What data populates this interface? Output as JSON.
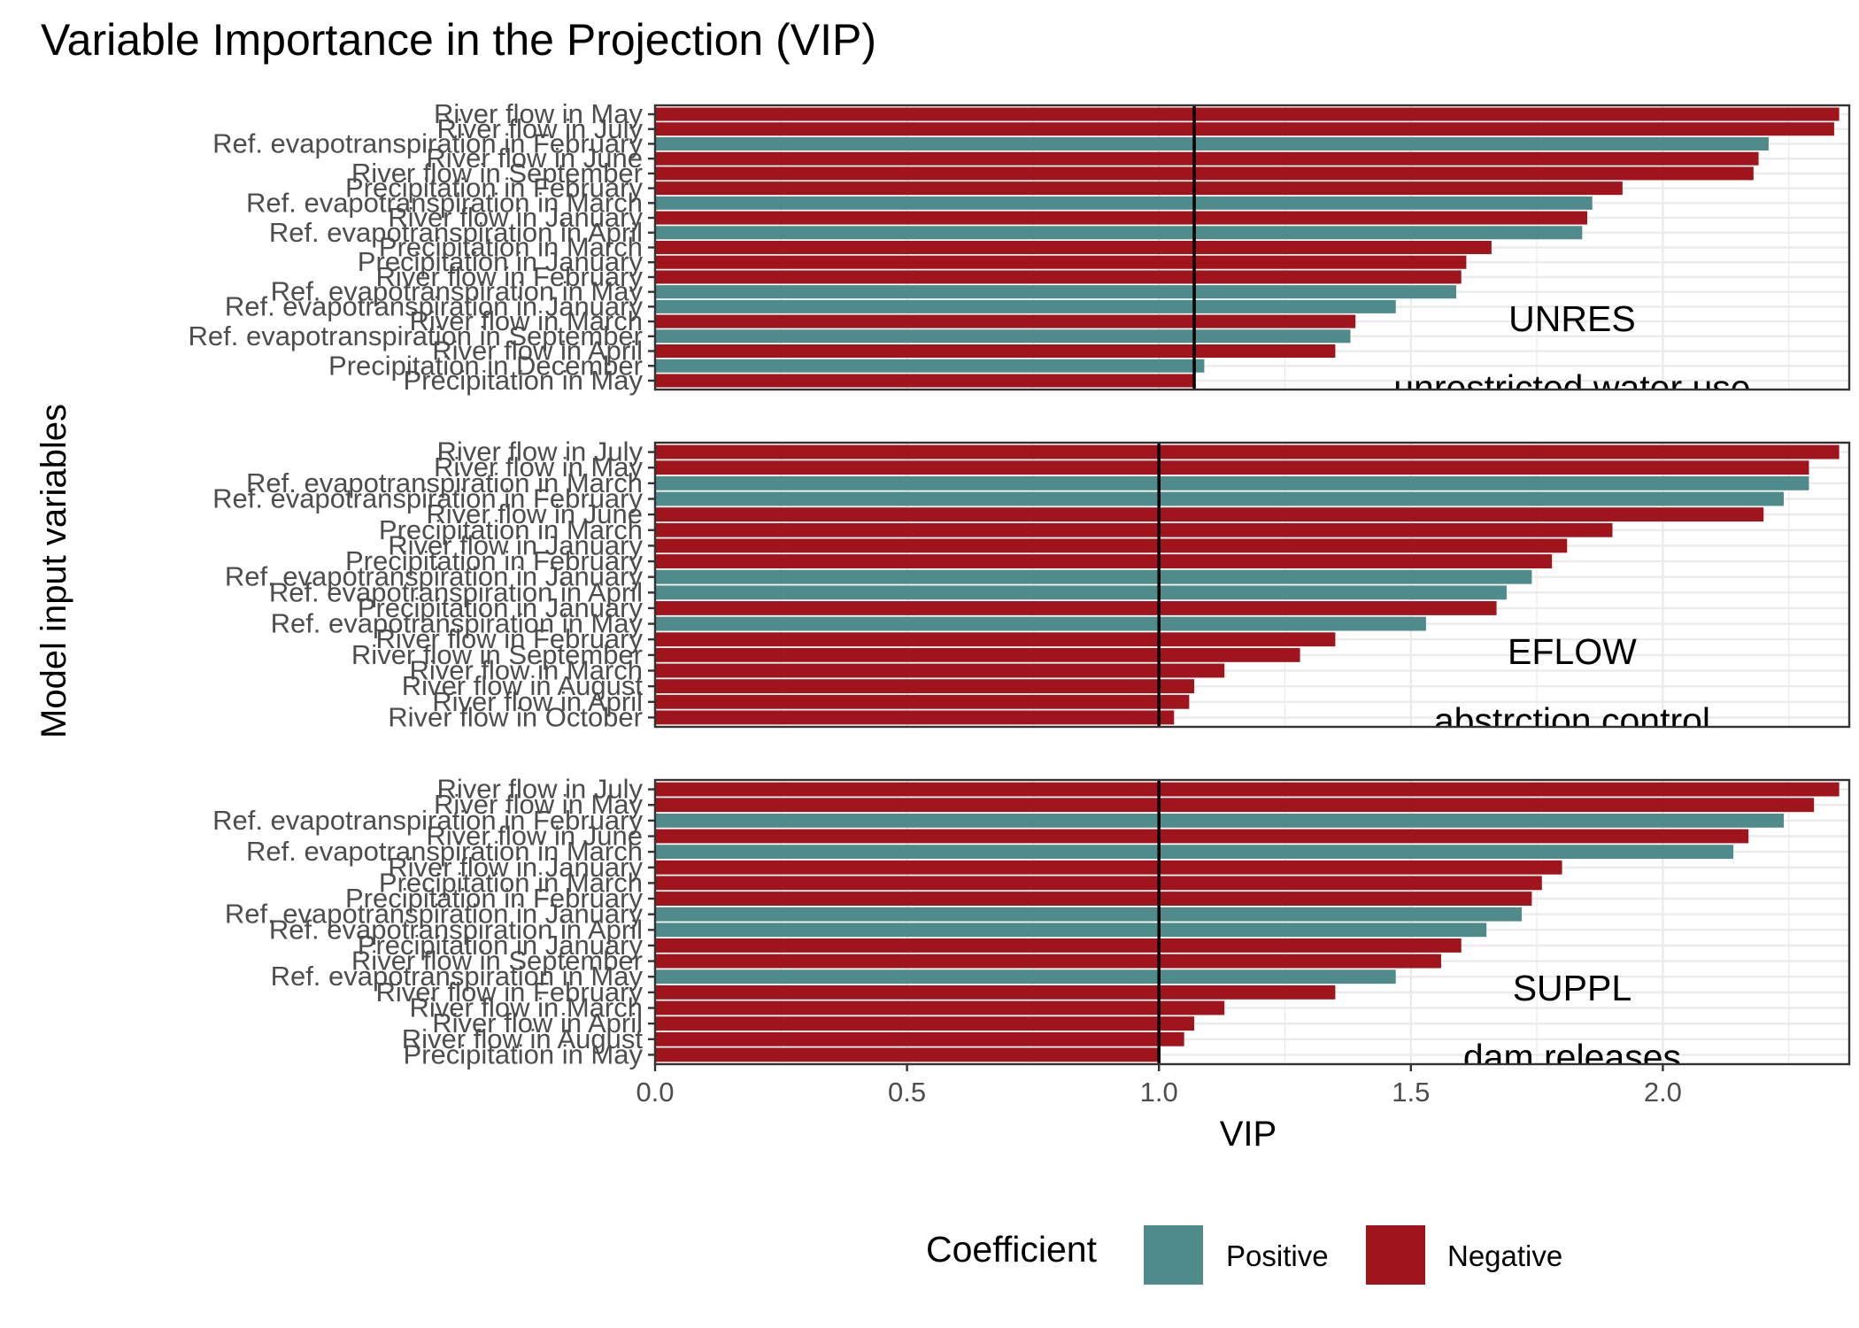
{
  "chart_data": {
    "type": "bar",
    "orientation": "horizontal",
    "title": "Variable Importance in the Projection (VIP)",
    "xlabel": "VIP",
    "ylabel": "Model input variables",
    "xlim": [
      0,
      2.37
    ],
    "xticks": [
      0.0,
      0.5,
      1.0,
      1.5,
      2.0
    ],
    "xtick_labels": [
      "0.0",
      "0.5",
      "1.0",
      "1.5",
      "2.0"
    ],
    "colors": {
      "Positive": "#508b8b",
      "Negative": "#a0141c"
    },
    "legend": {
      "title": "Coefficient",
      "position": "bottom",
      "entries": [
        "Positive",
        "Negative"
      ]
    },
    "panels": [
      {
        "annotation": "UNRES",
        "subannotation": "unrestricted water use",
        "threshold": 1.07,
        "bars": [
          {
            "label": "River flow in May",
            "value": 2.35,
            "sign": "Negative"
          },
          {
            "label": "River flow in July",
            "value": 2.34,
            "sign": "Negative"
          },
          {
            "label": "Ref. evapotranspiration in February",
            "value": 2.21,
            "sign": "Positive"
          },
          {
            "label": "River flow in June",
            "value": 2.19,
            "sign": "Negative"
          },
          {
            "label": "River flow in September",
            "value": 2.18,
            "sign": "Negative"
          },
          {
            "label": "Precipitation in February",
            "value": 1.92,
            "sign": "Negative"
          },
          {
            "label": "Ref. evapotranspiration in March",
            "value": 1.86,
            "sign": "Positive"
          },
          {
            "label": "River flow in January",
            "value": 1.85,
            "sign": "Negative"
          },
          {
            "label": "Ref. evapotranspiration in April",
            "value": 1.84,
            "sign": "Positive"
          },
          {
            "label": "Precipitation in March",
            "value": 1.66,
            "sign": "Negative"
          },
          {
            "label": "Precipitation in January",
            "value": 1.61,
            "sign": "Negative"
          },
          {
            "label": "River flow in February",
            "value": 1.6,
            "sign": "Negative"
          },
          {
            "label": "Ref. evapotranspiration in May",
            "value": 1.59,
            "sign": "Positive"
          },
          {
            "label": "Ref. evapotranspiration in January",
            "value": 1.47,
            "sign": "Positive"
          },
          {
            "label": "River flow in March",
            "value": 1.39,
            "sign": "Negative"
          },
          {
            "label": "Ref. evapotranspiration in September",
            "value": 1.38,
            "sign": "Positive"
          },
          {
            "label": "River flow in April",
            "value": 1.35,
            "sign": "Negative"
          },
          {
            "label": "Precipitation in December",
            "value": 1.09,
            "sign": "Positive"
          },
          {
            "label": "Precipitation in May",
            "value": 1.07,
            "sign": "Negative"
          }
        ]
      },
      {
        "annotation": "EFLOW",
        "subannotation": "abstrction control",
        "threshold": 1.0,
        "bars": [
          {
            "label": "River flow in July",
            "value": 2.35,
            "sign": "Negative"
          },
          {
            "label": "River flow in May",
            "value": 2.29,
            "sign": "Negative"
          },
          {
            "label": "Ref. evapotranspiration in March",
            "value": 2.29,
            "sign": "Positive"
          },
          {
            "label": "Ref. evapotranspiration in February",
            "value": 2.24,
            "sign": "Positive"
          },
          {
            "label": "River flow in June",
            "value": 2.2,
            "sign": "Negative"
          },
          {
            "label": "Precipitation in March",
            "value": 1.9,
            "sign": "Negative"
          },
          {
            "label": "River flow in January",
            "value": 1.81,
            "sign": "Negative"
          },
          {
            "label": "Precipitation in February",
            "value": 1.78,
            "sign": "Negative"
          },
          {
            "label": "Ref. evapotranspiration in January",
            "value": 1.74,
            "sign": "Positive"
          },
          {
            "label": "Ref. evapotranspiration in April",
            "value": 1.69,
            "sign": "Positive"
          },
          {
            "label": "Precipitation in January",
            "value": 1.67,
            "sign": "Negative"
          },
          {
            "label": "Ref. evapotranspiration in May",
            "value": 1.53,
            "sign": "Positive"
          },
          {
            "label": "River flow in February",
            "value": 1.35,
            "sign": "Negative"
          },
          {
            "label": "River flow in September",
            "value": 1.28,
            "sign": "Negative"
          },
          {
            "label": "River flow in March",
            "value": 1.13,
            "sign": "Negative"
          },
          {
            "label": "River flow in August",
            "value": 1.07,
            "sign": "Negative"
          },
          {
            "label": "River flow in April",
            "value": 1.06,
            "sign": "Negative"
          },
          {
            "label": "River flow in October",
            "value": 1.03,
            "sign": "Negative"
          }
        ]
      },
      {
        "annotation": "SUPPL",
        "subannotation": "dam releases",
        "threshold": 1.0,
        "bars": [
          {
            "label": "River flow in July",
            "value": 2.35,
            "sign": "Negative"
          },
          {
            "label": "River flow in May",
            "value": 2.3,
            "sign": "Negative"
          },
          {
            "label": "Ref. evapotranspiration in February",
            "value": 2.24,
            "sign": "Positive"
          },
          {
            "label": "River flow in June",
            "value": 2.17,
            "sign": "Negative"
          },
          {
            "label": "Ref. evapotranspiration in March",
            "value": 2.14,
            "sign": "Positive"
          },
          {
            "label": "River flow in January",
            "value": 1.8,
            "sign": "Negative"
          },
          {
            "label": "Precipitation in March",
            "value": 1.76,
            "sign": "Negative"
          },
          {
            "label": "Precipitation in February",
            "value": 1.74,
            "sign": "Negative"
          },
          {
            "label": "Ref. evapotranspiration in January",
            "value": 1.72,
            "sign": "Positive"
          },
          {
            "label": "Ref. evapotranspiration in April",
            "value": 1.65,
            "sign": "Positive"
          },
          {
            "label": "Precipitation in January",
            "value": 1.6,
            "sign": "Negative"
          },
          {
            "label": "River flow in September",
            "value": 1.56,
            "sign": "Negative"
          },
          {
            "label": "Ref. evapotranspiration in May",
            "value": 1.47,
            "sign": "Positive"
          },
          {
            "label": "River flow in February",
            "value": 1.35,
            "sign": "Negative"
          },
          {
            "label": "River flow in March",
            "value": 1.13,
            "sign": "Negative"
          },
          {
            "label": "River flow in April",
            "value": 1.07,
            "sign": "Negative"
          },
          {
            "label": "River flow in August",
            "value": 1.05,
            "sign": "Negative"
          },
          {
            "label": "Precipitation in May",
            "value": 1.0,
            "sign": "Negative"
          }
        ]
      }
    ]
  }
}
